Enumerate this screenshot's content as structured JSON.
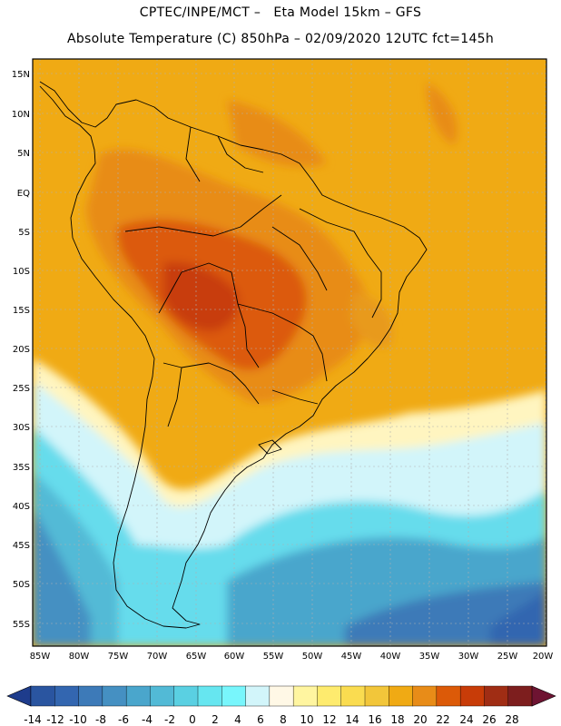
{
  "title_line1": "CPTEC/INPE/MCT –   Eta Model 15km – GFS",
  "title_line2": "Absolute Temperature (C) 850hPa – 02/09/2020 12UTC fct=145h",
  "lat_labels": [
    "15N",
    "10N",
    "5N",
    "EQ",
    "5S",
    "10S",
    "15S",
    "20S",
    "25S",
    "30S",
    "35S",
    "40S",
    "45S",
    "50S",
    "55S"
  ],
  "lon_labels": [
    "85W",
    "80W",
    "75W",
    "70W",
    "65W",
    "60W",
    "55W",
    "50W",
    "45W",
    "40W",
    "35W",
    "30W",
    "25W",
    "20W"
  ],
  "colorbar": {
    "labels": [
      "-14",
      "-12",
      "-10",
      "-8",
      "-6",
      "-4",
      "-2",
      "0",
      "2",
      "4",
      "6",
      "8",
      "10",
      "12",
      "14",
      "16",
      "18",
      "20",
      "22",
      "24",
      "26",
      "28"
    ],
    "colors": [
      "#1e3c8c",
      "#2a55a0",
      "#3366b0",
      "#3d7ab8",
      "#4590c2",
      "#4aa6cc",
      "#52bad6",
      "#5ad0e2",
      "#66e6f0",
      "#78f6fc",
      "#d2f5fa",
      "#fff8e6",
      "#fff5a0",
      "#feeb6e",
      "#fadc50",
      "#f2c63a",
      "#f0aa14",
      "#e88c18",
      "#dc5a08",
      "#c83c08",
      "#a02d14",
      "#7d1e1e",
      "#6e1432"
    ]
  }
}
